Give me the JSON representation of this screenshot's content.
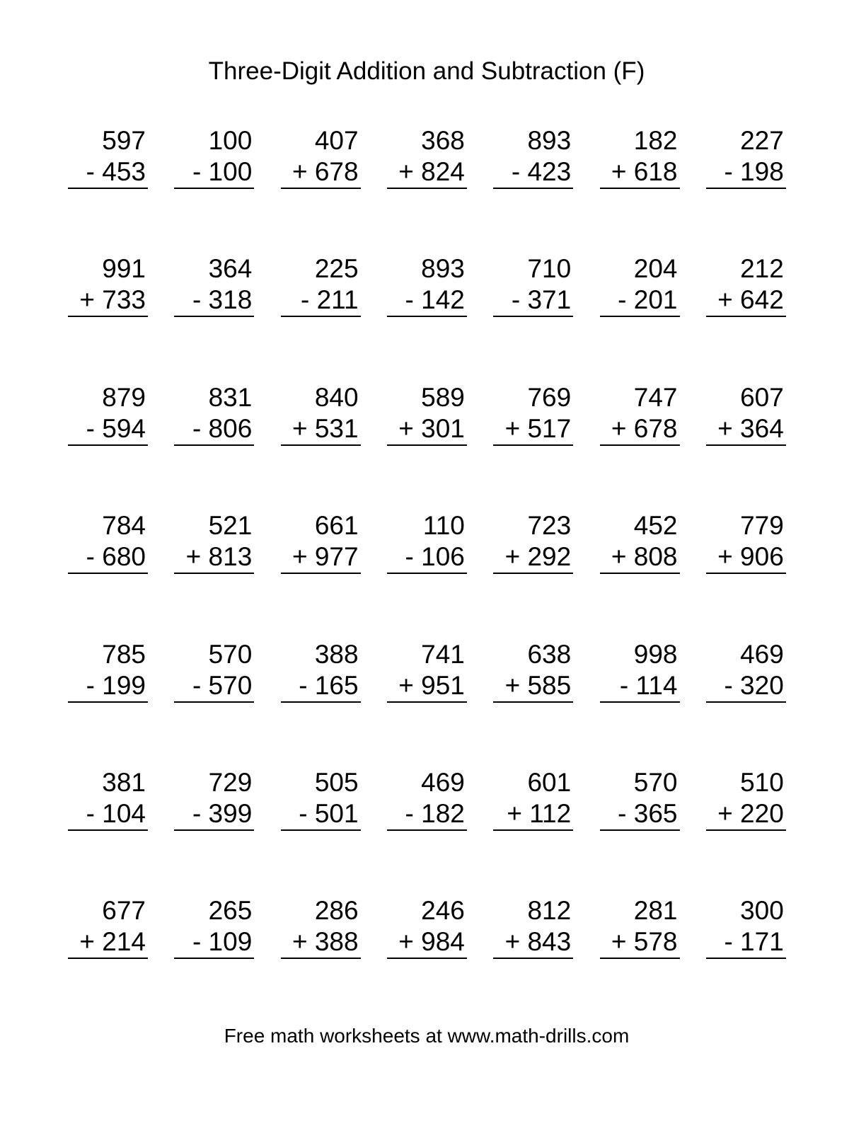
{
  "title": "Three-Digit Addition and Subtraction (F)",
  "footer": "Free math worksheets at www.math-drills.com",
  "rows": [
    [
      [
        "597",
        "- 453"
      ],
      [
        "100",
        "- 100"
      ],
      [
        "407",
        "+ 678"
      ],
      [
        "368",
        "+ 824"
      ],
      [
        "893",
        "- 423"
      ],
      [
        "182",
        "+ 618"
      ],
      [
        "227",
        "- 198"
      ]
    ],
    [
      [
        "991",
        "+ 733"
      ],
      [
        "364",
        "- 318"
      ],
      [
        "225",
        "- 211"
      ],
      [
        "893",
        "- 142"
      ],
      [
        "710",
        "- 371"
      ],
      [
        "204",
        "- 201"
      ],
      [
        "212",
        "+ 642"
      ]
    ],
    [
      [
        "879",
        "- 594"
      ],
      [
        "831",
        "- 806"
      ],
      [
        "840",
        "+ 531"
      ],
      [
        "589",
        "+ 301"
      ],
      [
        "769",
        "+ 517"
      ],
      [
        "747",
        "+ 678"
      ],
      [
        "607",
        "+ 364"
      ]
    ],
    [
      [
        "784",
        "- 680"
      ],
      [
        "521",
        "+ 813"
      ],
      [
        "661",
        "+ 977"
      ],
      [
        "110",
        "- 106"
      ],
      [
        "723",
        "+ 292"
      ],
      [
        "452",
        "+ 808"
      ],
      [
        "779",
        "+ 906"
      ]
    ],
    [
      [
        "785",
        "- 199"
      ],
      [
        "570",
        "- 570"
      ],
      [
        "388",
        "- 165"
      ],
      [
        "741",
        "+ 951"
      ],
      [
        "638",
        "+ 585"
      ],
      [
        "998",
        "- 114"
      ],
      [
        "469",
        "- 320"
      ]
    ],
    [
      [
        "381",
        "- 104"
      ],
      [
        "729",
        "- 399"
      ],
      [
        "505",
        "- 501"
      ],
      [
        "469",
        "- 182"
      ],
      [
        "601",
        "+ 112"
      ],
      [
        "570",
        "- 365"
      ],
      [
        "510",
        "+ 220"
      ]
    ],
    [
      [
        "677",
        "+ 214"
      ],
      [
        "265",
        "- 109"
      ],
      [
        "286",
        "+ 388"
      ],
      [
        "246",
        "+ 984"
      ],
      [
        "812",
        "+ 843"
      ],
      [
        "281",
        "+ 578"
      ],
      [
        "300",
        "- 171"
      ]
    ]
  ]
}
